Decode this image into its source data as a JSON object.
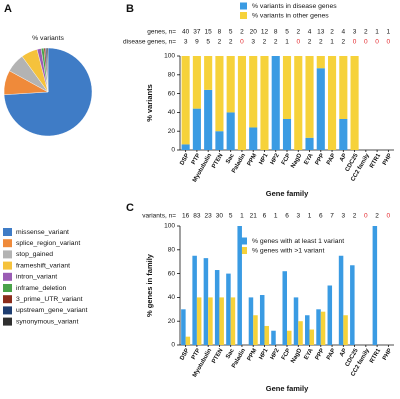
{
  "chart_data": [
    {
      "type": "pie",
      "panel": "A",
      "title": "% variants",
      "categories": [
        "missense_variant",
        "splice_region_variant",
        "stop_gained",
        "frameshift_variant",
        "intron_variant",
        "inframe_deletion",
        "3_prime_UTR_variant",
        "upstream_gene_variant",
        "synonymous_variant"
      ],
      "values": [
        74,
        9,
        7,
        6,
        1.5,
        1,
        0.6,
        0.5,
        0.4
      ],
      "colors": [
        "#3f7cc6",
        "#ef8a3a",
        "#b3b3b3",
        "#f5c23c",
        "#9a5cb4",
        "#4aa34a",
        "#8a2c1c",
        "#1e3d70",
        "#2f2f2f"
      ]
    },
    {
      "type": "stacked_bar",
      "panel": "B",
      "annotation_rows": [
        {
          "label": "genes, n=",
          "values": [
            40,
            37,
            15,
            8,
            5,
            2,
            20,
            12,
            8,
            5,
            2,
            4,
            13,
            2,
            4,
            3,
            2,
            1,
            1
          ]
        },
        {
          "label": "disease genes, n=",
          "values": [
            3,
            9,
            5,
            2,
            2,
            0,
            3,
            2,
            2,
            1,
            0,
            2,
            2,
            1,
            2,
            0,
            0,
            0,
            0
          ]
        }
      ],
      "zero_color": "#e3262b",
      "categories": [
        "DSP",
        "PTP",
        "Myotubulin",
        "PTEN",
        "Sac",
        "Paladin",
        "PPM",
        "HP1",
        "HP2",
        "FCP",
        "NagD",
        "EYA",
        "PPP",
        "PAP",
        "AP",
        "CDC25",
        "CC2 family",
        "RTR1",
        "PHP"
      ],
      "series": [
        {
          "name": "% variants in disease genes",
          "color": "#3a9be3",
          "values": [
            6,
            44,
            64,
            20,
            40,
            0,
            24,
            0,
            100,
            33,
            0,
            13,
            87,
            0,
            33,
            0,
            0,
            0,
            0
          ]
        },
        {
          "name": "% variants in other genes",
          "color": "#f6d23a",
          "values": [
            94,
            56,
            36,
            80,
            60,
            100,
            76,
            100,
            0,
            67,
            100,
            87,
            13,
            100,
            67,
            100,
            0,
            0,
            0
          ]
        }
      ],
      "ylabel": "% variants",
      "xlabel": "Gene family",
      "ylim": [
        0,
        100
      ],
      "yticks": [
        0,
        20,
        40,
        60,
        80,
        100
      ]
    },
    {
      "type": "grouped_bar",
      "panel": "C",
      "annotation_rows": [
        {
          "label": "variants, n=",
          "values": [
            16,
            83,
            23,
            30,
            5,
            1,
            21,
            6,
            1,
            6,
            3,
            1,
            6,
            7,
            3,
            2,
            0,
            2,
            0
          ]
        }
      ],
      "zero_color": "#e3262b",
      "categories": [
        "DSP",
        "PTP",
        "Myotubulin",
        "PTEN",
        "Sac",
        "Paladin",
        "PPM",
        "HP1",
        "HP2",
        "FCP",
        "NagD",
        "EYA",
        "PPP",
        "PAP",
        "AP",
        "CDC25",
        "CC2 family",
        "RTR1",
        "PHP"
      ],
      "series": [
        {
          "name": "% genes with at least 1 variant",
          "color": "#3a9be3",
          "values": [
            30,
            75,
            73,
            63,
            60,
            100,
            40,
            42,
            12,
            62,
            40,
            25,
            30,
            50,
            75,
            67,
            0,
            100,
            0
          ]
        },
        {
          "name": "% genes with >1 variant",
          "color": "#f6d23a",
          "values": [
            7,
            40,
            40,
            40,
            40,
            0,
            25,
            16,
            0,
            12,
            20,
            13,
            28,
            0,
            25,
            0,
            0,
            0,
            0
          ]
        }
      ],
      "ylabel": "% genes in family",
      "xlabel": "Gene family",
      "ylim": [
        0,
        100
      ],
      "yticks": [
        0,
        20,
        40,
        60,
        80,
        100
      ]
    }
  ]
}
